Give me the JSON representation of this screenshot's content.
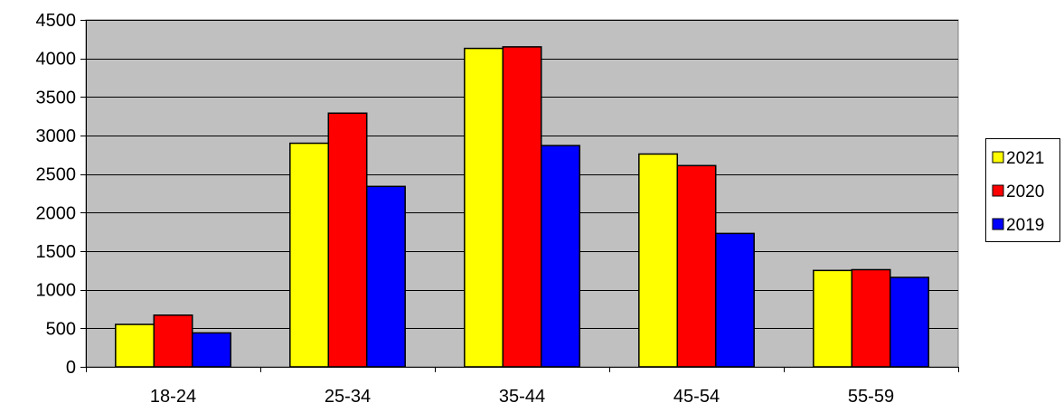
{
  "chart_data": {
    "type": "bar",
    "title": "",
    "xlabel": "",
    "ylabel": "",
    "categories": [
      "18-24",
      "25-34",
      "35-44",
      "45-54",
      "55-59"
    ],
    "series": [
      {
        "name": "2021",
        "color": "#FFFF00",
        "values": [
          550,
          2900,
          4130,
          2760,
          1250
        ]
      },
      {
        "name": "2020",
        "color": "#FF0000",
        "values": [
          670,
          3290,
          4150,
          2610,
          1260
        ]
      },
      {
        "name": "2019",
        "color": "#0000FF",
        "values": [
          440,
          2340,
          2870,
          1730,
          1160
        ]
      }
    ],
    "ylim": [
      0,
      4500
    ],
    "yticks": [
      0,
      500,
      1000,
      1500,
      2000,
      2500,
      3000,
      3500,
      4000,
      4500
    ],
    "grid": true,
    "plot_background": "#C0C0C0",
    "legend_position": "right"
  }
}
